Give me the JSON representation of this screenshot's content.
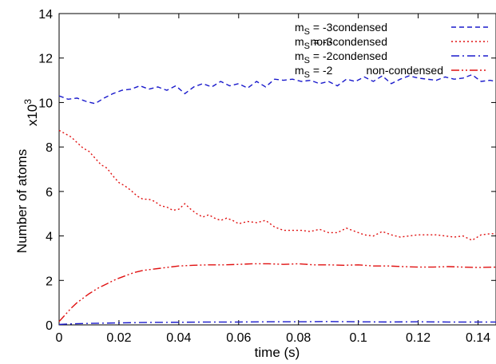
{
  "chart_data": {
    "type": "line",
    "title": "",
    "xlabel": "time (s)",
    "ylabel": "Number of atoms",
    "y_multiplier": {
      "base": "x10",
      "exponent": "3"
    },
    "xlim": [
      0,
      0.146
    ],
    "ylim": [
      0,
      14
    ],
    "x_ticks": [
      0,
      0.02,
      0.04,
      0.06,
      0.08,
      0.1,
      0.12,
      0.14
    ],
    "x_tick_labels": [
      "0",
      "0.02",
      "0.04",
      "0.06",
      "0.08",
      "0.1",
      "0.12",
      "0.14"
    ],
    "y_ticks": [
      0,
      2,
      4,
      6,
      8,
      10,
      12,
      14
    ],
    "y_tick_labels": [
      "0",
      "2",
      "4",
      "6",
      "8",
      "10",
      "12",
      "14"
    ],
    "grid": false,
    "legend_position": "top-right",
    "series": [
      {
        "label_main": "m",
        "label_sub": "S",
        "label_rest": " = -3",
        "label_state": "condensed",
        "color": "#1a1acc",
        "dash": "dashed",
        "x": [
          0,
          0.003,
          0.006,
          0.009,
          0.012,
          0.015,
          0.018,
          0.021,
          0.024,
          0.027,
          0.03,
          0.033,
          0.036,
          0.039,
          0.042,
          0.045,
          0.048,
          0.051,
          0.054,
          0.057,
          0.06,
          0.063,
          0.066,
          0.069,
          0.072,
          0.075,
          0.078,
          0.081,
          0.084,
          0.087,
          0.09,
          0.093,
          0.096,
          0.099,
          0.102,
          0.105,
          0.108,
          0.111,
          0.114,
          0.117,
          0.12,
          0.123,
          0.126,
          0.129,
          0.132,
          0.135,
          0.138,
          0.141,
          0.144,
          0.146
        ],
        "y": [
          10.3,
          10.15,
          10.2,
          10.05,
          9.95,
          10.2,
          10.4,
          10.55,
          10.6,
          10.75,
          10.6,
          10.7,
          10.55,
          10.75,
          10.4,
          10.7,
          10.85,
          10.7,
          10.95,
          10.75,
          10.85,
          10.65,
          10.95,
          10.7,
          11.05,
          11.0,
          11.05,
          10.95,
          11.0,
          10.85,
          10.95,
          10.75,
          11.05,
          10.95,
          11.15,
          10.95,
          11.2,
          10.85,
          11.05,
          11.2,
          11.1,
          11.05,
          11.0,
          11.15,
          11.05,
          11.1,
          11.25,
          10.95,
          11.0,
          10.95
        ]
      },
      {
        "label_main": "m",
        "label_sub": "S",
        "label_rest": " = -3",
        "label_state": "non-condensed",
        "color": "#e01010",
        "dash": "dotted",
        "x": [
          0,
          0.002,
          0.004,
          0.006,
          0.008,
          0.01,
          0.012,
          0.014,
          0.016,
          0.018,
          0.02,
          0.022,
          0.024,
          0.026,
          0.028,
          0.03,
          0.032,
          0.034,
          0.036,
          0.038,
          0.04,
          0.042,
          0.044,
          0.046,
          0.048,
          0.05,
          0.052,
          0.054,
          0.056,
          0.058,
          0.06,
          0.063,
          0.066,
          0.069,
          0.072,
          0.075,
          0.078,
          0.081,
          0.084,
          0.087,
          0.09,
          0.093,
          0.096,
          0.099,
          0.102,
          0.105,
          0.108,
          0.111,
          0.114,
          0.117,
          0.12,
          0.123,
          0.126,
          0.129,
          0.132,
          0.135,
          0.138,
          0.141,
          0.144,
          0.146
        ],
        "y": [
          8.75,
          8.6,
          8.45,
          8.2,
          7.95,
          7.8,
          7.5,
          7.2,
          7.05,
          6.7,
          6.4,
          6.25,
          6.05,
          5.8,
          5.65,
          5.65,
          5.55,
          5.35,
          5.3,
          5.15,
          5.2,
          5.45,
          5.2,
          5.0,
          4.85,
          4.95,
          4.8,
          4.7,
          4.8,
          4.7,
          4.55,
          4.65,
          4.6,
          4.7,
          4.4,
          4.25,
          4.25,
          4.25,
          4.2,
          4.3,
          4.15,
          4.15,
          4.35,
          4.2,
          4.05,
          4.0,
          4.2,
          4.05,
          3.95,
          4.0,
          4.05,
          4.05,
          4.05,
          4.0,
          3.95,
          4.0,
          3.8,
          4.05,
          4.1,
          4.1
        ]
      },
      {
        "label_main": "m",
        "label_sub": "S",
        "label_rest": " = -2",
        "label_state": "condensed",
        "color": "#1a1acc",
        "dash": "dashdot",
        "x": [
          0,
          0.005,
          0.01,
          0.02,
          0.03,
          0.04,
          0.05,
          0.06,
          0.07,
          0.08,
          0.09,
          0.1,
          0.11,
          0.12,
          0.13,
          0.14,
          0.146
        ],
        "y": [
          0.02,
          0.05,
          0.07,
          0.09,
          0.11,
          0.12,
          0.13,
          0.13,
          0.14,
          0.14,
          0.15,
          0.14,
          0.13,
          0.14,
          0.13,
          0.13,
          0.13
        ]
      },
      {
        "label_main": "m",
        "label_sub": "S",
        "label_rest": " = -2",
        "label_state": "non-condensed",
        "color": "#e01010",
        "dash": "dashdotdot",
        "x": [
          0,
          0.002,
          0.004,
          0.006,
          0.008,
          0.01,
          0.013,
          0.016,
          0.019,
          0.022,
          0.025,
          0.028,
          0.031,
          0.034,
          0.037,
          0.04,
          0.045,
          0.05,
          0.055,
          0.06,
          0.065,
          0.07,
          0.075,
          0.08,
          0.085,
          0.09,
          0.095,
          0.1,
          0.105,
          0.11,
          0.115,
          0.12,
          0.125,
          0.13,
          0.135,
          0.14,
          0.146
        ],
        "y": [
          0.15,
          0.45,
          0.75,
          1.0,
          1.2,
          1.4,
          1.65,
          1.85,
          2.05,
          2.2,
          2.35,
          2.45,
          2.5,
          2.55,
          2.6,
          2.65,
          2.68,
          2.7,
          2.7,
          2.72,
          2.75,
          2.75,
          2.72,
          2.75,
          2.7,
          2.7,
          2.68,
          2.7,
          2.65,
          2.65,
          2.62,
          2.6,
          2.6,
          2.62,
          2.6,
          2.58,
          2.6
        ]
      }
    ]
  }
}
